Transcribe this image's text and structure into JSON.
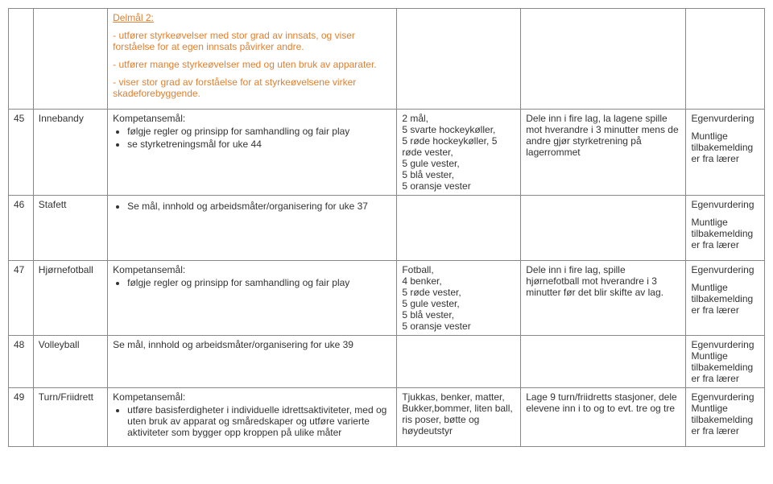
{
  "row_top": {
    "delmal_heading": "Delmål 2:",
    "p1": "- utfører styrkeøvelser med stor grad av innsats, og viser forståelse for at egen innsats påvirker andre.",
    "p2": "- utfører mange styrkeøvelser med og uten bruk av apparater.",
    "p3": "- viser stor grad av forståelse for at styrkeøvelsene virker skadeforebyggende."
  },
  "row45": {
    "week": "45",
    "topic": "Innebandy",
    "komp_label": "Kompetansemål:",
    "bullet1": "følgje regler og prinsipp for samhandling og fair play",
    "bullet2": "se styrketreningsmål for uke 44",
    "equip": "2 mål,\n5 svarte hockeykøller,\n5 røde hockeykøller, 5 røde vester,\n5 gule vester,\n5 blå vester,\n5 oransje vester",
    "org": "Dele inn i fire lag, la lagene spille mot hverandre i 3 minutter mens de andre gjør styrketrening på lagerrommet",
    "eval1": "Egenvurdering",
    "eval2": "Muntlige tilbakemelding er fra lærer"
  },
  "row46": {
    "week": "46",
    "topic": "Stafett",
    "bullet1": "Se mål, innhold og arbeidsmåter/organisering for uke 37",
    "eval1": "Egenvurdering",
    "eval2": "Muntlige tilbakemelding er fra lærer"
  },
  "row47": {
    "week": "47",
    "topic": "Hjørnefotball",
    "komp_label": "Kompetansemål:",
    "bullet1": "følgje regler og prinsipp for samhandling og fair play",
    "equip": " Fotball,\n 4 benker,\n 5 røde vester,\n5 gule vester,\n5 blå vester,\n5 oransje vester",
    "org": "Dele inn i fire lag, spille hjørnefotball mot hverandre i 3 minutter før det blir skifte av lag.",
    "eval1": "Egenvurdering",
    "eval2": "Muntlige tilbakemelding er fra lærer"
  },
  "row48": {
    "week": "48",
    "topic": "Volleyball",
    "content": "Se mål, innhold og arbeidsmåter/organisering for uke 39",
    "eval1": "Egenvurdering",
    "eval2": "Muntlige tilbakemelding er fra lærer"
  },
  "row49": {
    "week": "49",
    "topic": "Turn/Friidrett",
    "komp_label": "Kompetansemål:",
    "bullet1": "utføre basisferdigheter i individuelle idrettsaktiviteter, med og uten bruk av apparat og småredskaper og utføre varierte aktiviteter som bygger opp kroppen på ulike måter",
    "equip": "Tjukkas, benker, matter, Bukker,bommer, liten ball, ris poser, bøtte og høydeutstyr",
    "org": "Lage 9 turn/friidretts stasjoner, dele elevene inn i to og to evt. tre og tre",
    "eval1": "Egenvurdering",
    "eval2": "Muntlige tilbakemelding er fra lærer"
  }
}
